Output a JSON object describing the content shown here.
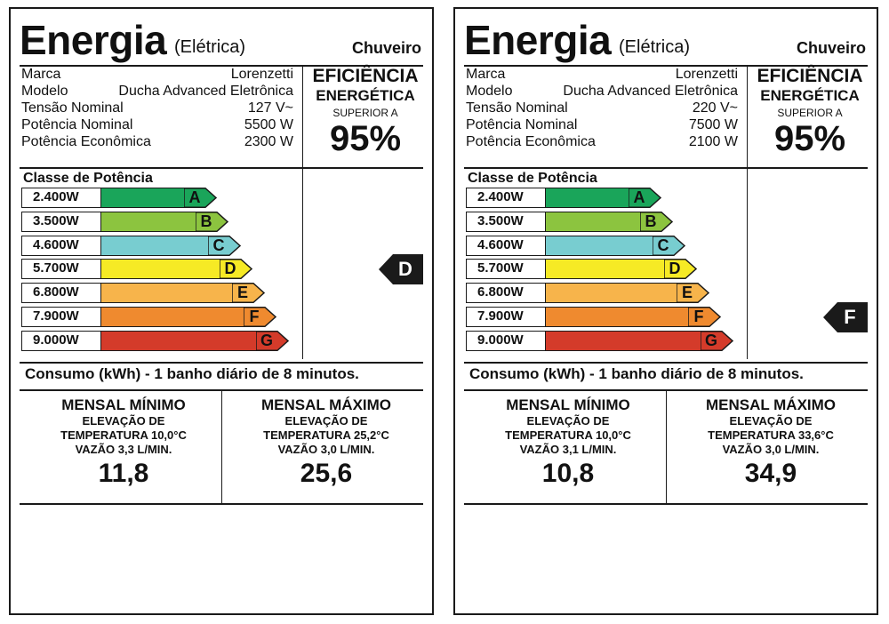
{
  "labels": [
    {
      "title": "Energia",
      "subtitle": "(Elétrica)",
      "product": "Chuveiro",
      "info": [
        {
          "key": "Marca",
          "value": "Lorenzetti"
        },
        {
          "key": "Modelo",
          "value": "Ducha Advanced Eletrônica"
        },
        {
          "key": "Tensão Nominal",
          "value": "127 V~"
        },
        {
          "key": "Potência Nominal",
          "value": "5500 W"
        },
        {
          "key": "Potência Econômica",
          "value": "2300 W"
        }
      ],
      "efficiency": {
        "line1": "EFICIÊNCIA",
        "line2": "ENERGÉTICA",
        "line3": "SUPERIOR A",
        "value": "95%"
      },
      "class_title": "Classe de Potência",
      "bars": [
        {
          "power": "2.400W",
          "letter": "A",
          "color": "#1aa55a"
        },
        {
          "power": "3.500W",
          "letter": "B",
          "color": "#8cc43f"
        },
        {
          "power": "4.600W",
          "letter": "C",
          "color": "#78cdd0"
        },
        {
          "power": "5.700W",
          "letter": "D",
          "color": "#f6ea25"
        },
        {
          "power": "6.800W",
          "letter": "E",
          "color": "#f7b44b"
        },
        {
          "power": "7.900W",
          "letter": "F",
          "color": "#ef8a2f"
        },
        {
          "power": "9.000W",
          "letter": "G",
          "color": "#d43b2a"
        }
      ],
      "indicator": "D",
      "consumption_text": "Consumo (kWh) - 1 banho diário de 8 minutos.",
      "min": {
        "head": "MENSAL MÍNIMO",
        "line1": "ELEVAÇÃO DE",
        "line2": "TEMPERATURA 10,0°C",
        "line3": "VAZÃO 3,3 L/MIN.",
        "value": "11,8"
      },
      "max": {
        "head": "MENSAL MÁXIMO",
        "line1": "ELEVAÇÃO DE",
        "line2": "TEMPERATURA 25,2°C",
        "line3": "VAZÃO 3,0 L/MIN.",
        "value": "25,6"
      }
    },
    {
      "title": "Energia",
      "subtitle": "(Elétrica)",
      "product": "Chuveiro",
      "info": [
        {
          "key": "Marca",
          "value": "Lorenzetti"
        },
        {
          "key": "Modelo",
          "value": "Ducha Advanced Eletrônica"
        },
        {
          "key": "Tensão Nominal",
          "value": "220 V~"
        },
        {
          "key": "Potência Nominal",
          "value": "7500 W"
        },
        {
          "key": "Potência Econômica",
          "value": "2100 W"
        }
      ],
      "efficiency": {
        "line1": "EFICIÊNCIA",
        "line2": "ENERGÉTICA",
        "line3": "SUPERIOR A",
        "value": "95%"
      },
      "class_title": "Classe de Potência",
      "bars": [
        {
          "power": "2.400W",
          "letter": "A",
          "color": "#1aa55a"
        },
        {
          "power": "3.500W",
          "letter": "B",
          "color": "#8cc43f"
        },
        {
          "power": "4.600W",
          "letter": "C",
          "color": "#78cdd0"
        },
        {
          "power": "5.700W",
          "letter": "D",
          "color": "#f6ea25"
        },
        {
          "power": "6.800W",
          "letter": "E",
          "color": "#f7b44b"
        },
        {
          "power": "7.900W",
          "letter": "F",
          "color": "#ef8a2f"
        },
        {
          "power": "9.000W",
          "letter": "G",
          "color": "#d43b2a"
        }
      ],
      "indicator": "F",
      "consumption_text": "Consumo (kWh) - 1 banho diário de 8 minutos.",
      "min": {
        "head": "MENSAL MÍNIMO",
        "line1": "ELEVAÇÃO DE",
        "line2": "TEMPERATURA 10,0°C",
        "line3": "VAZÃO 3,1 L/MIN.",
        "value": "10,8"
      },
      "max": {
        "head": "MENSAL MÁXIMO",
        "line1": "ELEVAÇÃO DE",
        "line2": "TEMPERATURA 33,6°C",
        "line3": "VAZÃO 3,0 L/MIN.",
        "value": "34,9"
      }
    }
  ]
}
